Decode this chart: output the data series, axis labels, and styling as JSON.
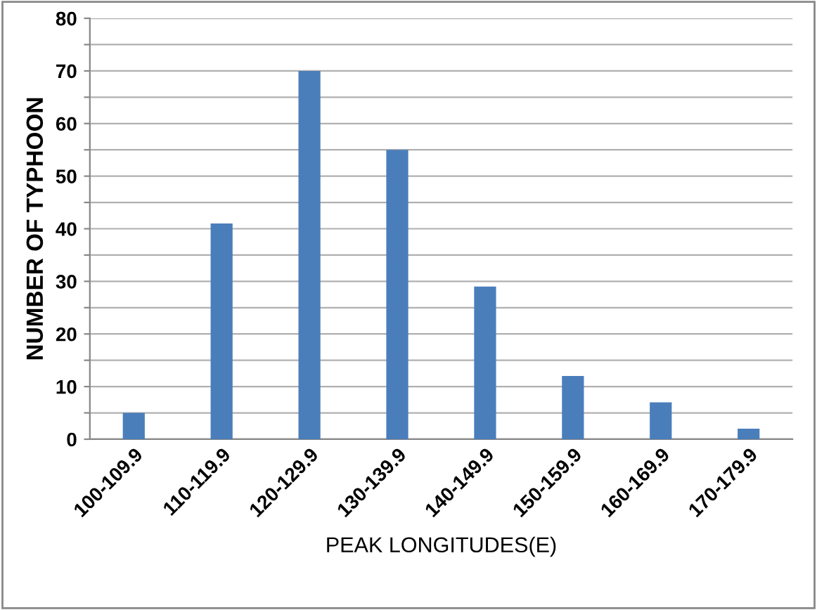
{
  "chart_data": {
    "type": "bar",
    "xlabel": "PEAK LONGITUDES(E)",
    "ylabel": "NUMBER OF TYPHOON",
    "categories": [
      "100-109.9",
      "110-119.9",
      "120-129.9",
      "130-139.9",
      "140-149.9",
      "150-159.9",
      "160-169.9",
      "170-179.9"
    ],
    "values": [
      5,
      41,
      70,
      55,
      29,
      12,
      7,
      2
    ],
    "color": "#4a7ebb",
    "ylim": [
      0,
      80
    ],
    "yticks": [
      0,
      {
        "value": 5,
        "label": null
      },
      10,
      {
        "value": 15,
        "label": null
      },
      20,
      {
        "value": 25,
        "label": null
      },
      30,
      {
        "value": 35,
        "label": null
      },
      40,
      {
        "value": 45,
        "label": null
      },
      50,
      {
        "value": 55,
        "label": null
      },
      60,
      {
        "value": 65,
        "label": null
      },
      70,
      {
        "value": 75,
        "label": null
      },
      80
    ],
    "grid": "y"
  }
}
